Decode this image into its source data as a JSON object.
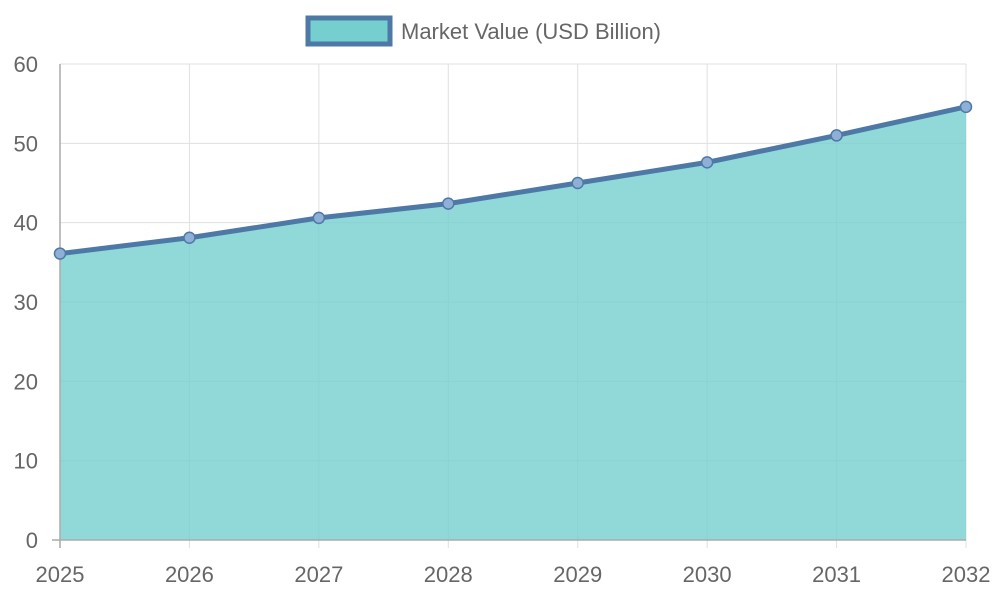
{
  "chart_data": {
    "type": "area",
    "categories": [
      "2025",
      "2026",
      "2027",
      "2028",
      "2029",
      "2030",
      "2031",
      "2032"
    ],
    "series": [
      {
        "name": "Market Value (USD Billion)",
        "values": [
          36.1,
          38.1,
          40.6,
          42.4,
          45.0,
          47.6,
          51.0,
          54.6
        ]
      }
    ],
    "ylim": [
      0,
      60
    ],
    "yticks": [
      "0",
      "10",
      "20",
      "30",
      "40",
      "50",
      "60"
    ],
    "grid": true,
    "legend_position": "top-center",
    "colors": {
      "line": "#4e79a7",
      "fill": "#76cfcf",
      "grid": "#e0e0e0",
      "axis": "#aaaaaa",
      "text": "#666666"
    }
  }
}
